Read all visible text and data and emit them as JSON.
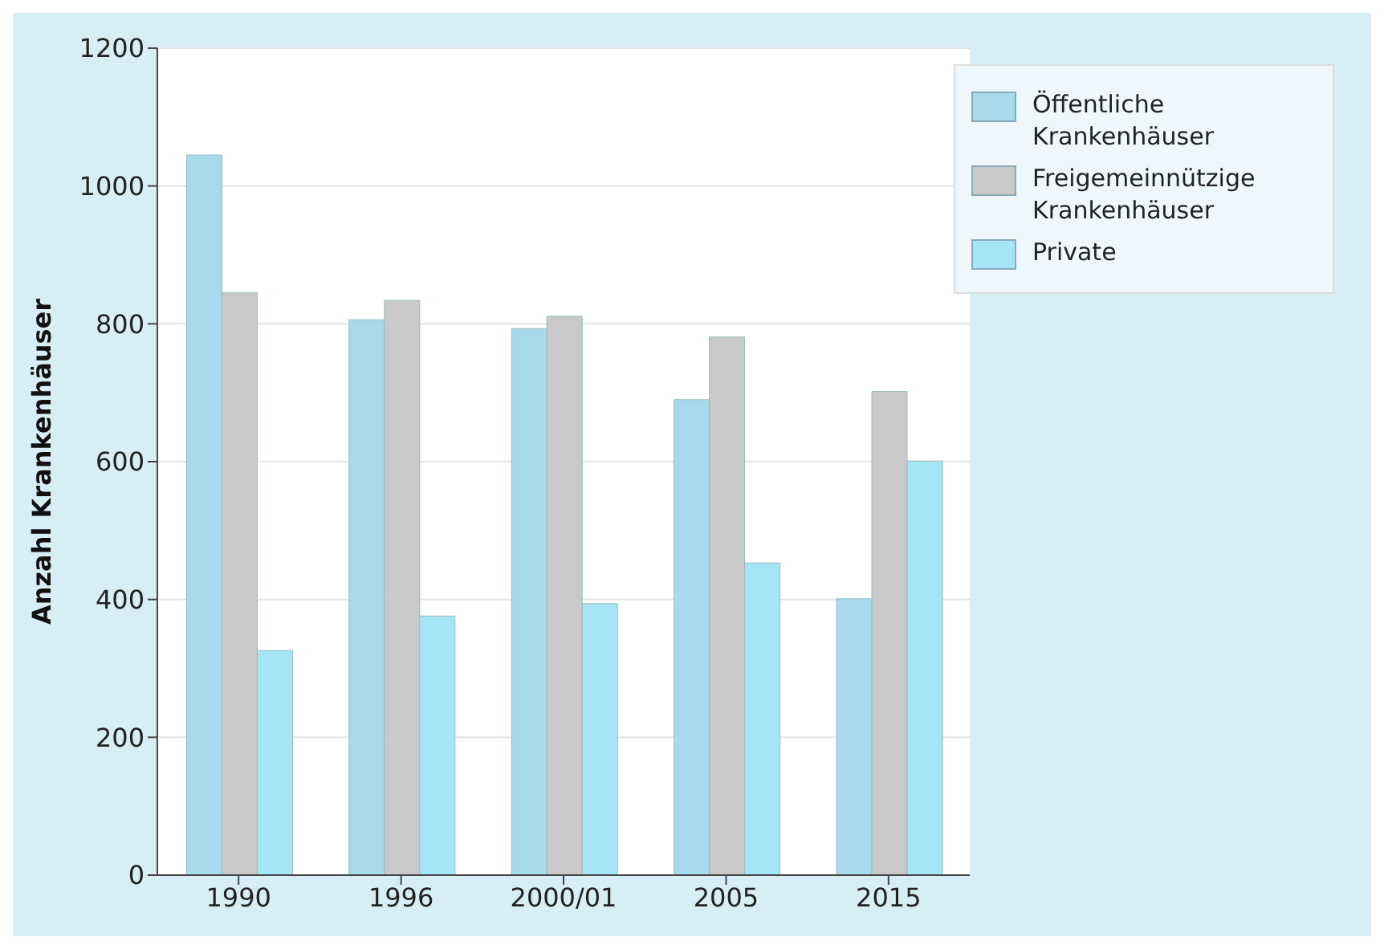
{
  "chart_data": {
    "type": "bar",
    "ylabel": "Anzahl Krankenhäuser",
    "categories": [
      "1990",
      "1996",
      "2000/01",
      "2005",
      "2015"
    ],
    "series": [
      {
        "name": "Öffentliche Krankenhäuser",
        "color": "#a9d9ec",
        "values": [
          1045,
          806,
          793,
          690,
          401
        ]
      },
      {
        "name": "Freigemeinnützige Krankenhäuser",
        "color": "#c9c9c9",
        "values": [
          845,
          834,
          811,
          781,
          702
        ]
      },
      {
        "name": "Private",
        "color": "#a6e4f7",
        "values": [
          326,
          376,
          394,
          453,
          601
        ]
      }
    ],
    "ylim": [
      0,
      1200
    ],
    "yticks": [
      0,
      200,
      400,
      600,
      800,
      1000,
      1200
    ],
    "grid": "y",
    "legend": "top right"
  }
}
